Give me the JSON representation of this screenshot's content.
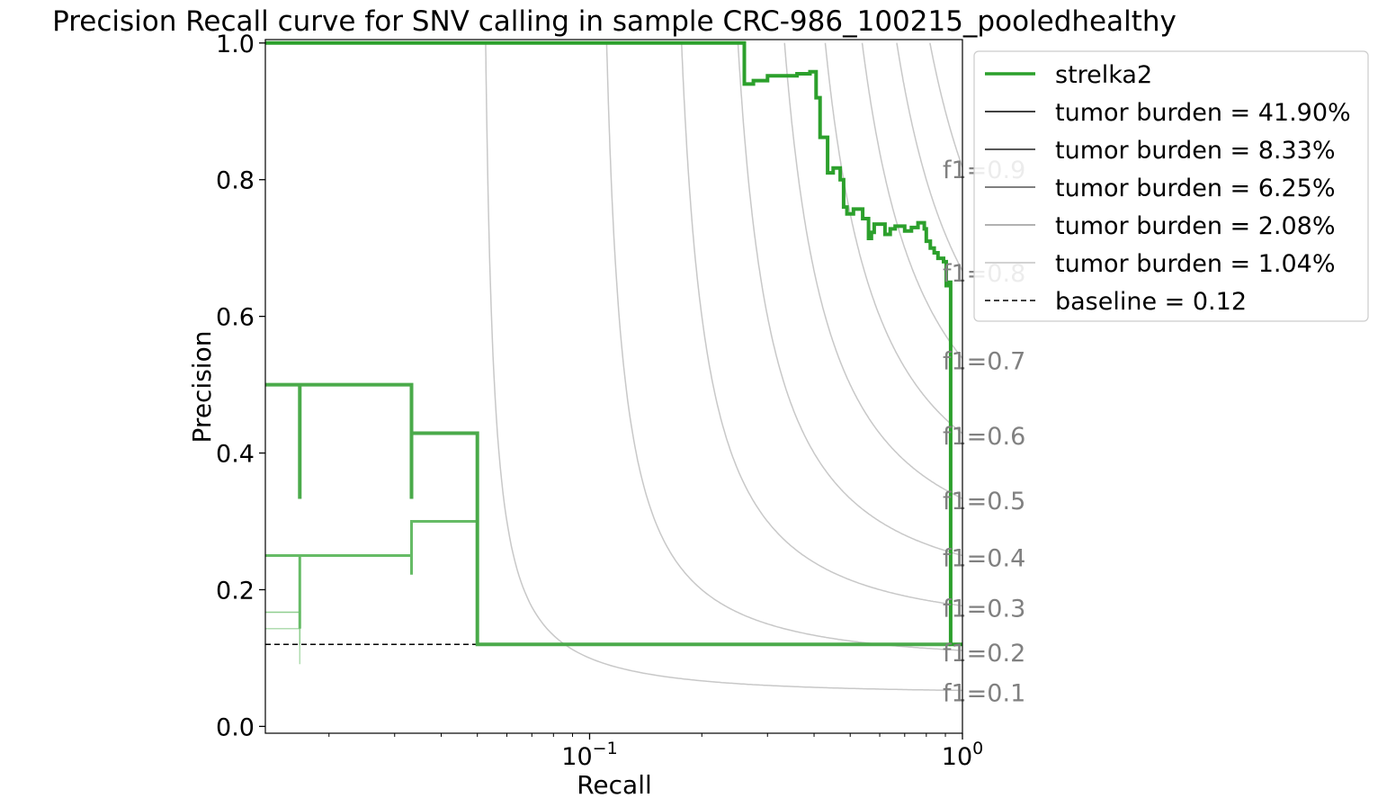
{
  "chart_data": {
    "type": "line",
    "title": "Precision Recall curve for SNV calling in sample CRC-986_100215_pooledhealthy",
    "xlabel": "Recall",
    "ylabel": "Precision",
    "xscale": "log",
    "xlim": [
      0.0135,
      1.0
    ],
    "ylim": [
      -0.01,
      1.005
    ],
    "x_ticks": [
      {
        "value": 0.1,
        "base": "10",
        "exp": "−1"
      },
      {
        "value": 1.0,
        "base": "10",
        "exp": "0"
      }
    ],
    "y_ticks": [
      {
        "value": 0.0,
        "label": "0.0"
      },
      {
        "value": 0.2,
        "label": "0.2"
      },
      {
        "value": 0.4,
        "label": "0.4"
      },
      {
        "value": 0.6,
        "label": "0.6"
      },
      {
        "value": 0.8,
        "label": "0.8"
      },
      {
        "value": 1.0,
        "label": "1.0"
      }
    ],
    "grid": false,
    "legend_position": "outside-upper-right",
    "colors": {
      "strelka2": "#2ca02c",
      "iso_f1": "#c8c8c8",
      "iso_label": "#808080",
      "baseline": "#000000"
    },
    "iso_f1_labels": [
      "f1=0.1",
      "f1=0.2",
      "f1=0.3",
      "f1=0.4",
      "f1=0.5",
      "f1=0.6",
      "f1=0.7",
      "f1=0.8",
      "f1=0.9"
    ],
    "iso_f1_values": [
      0.1,
      0.2,
      0.3,
      0.4,
      0.5,
      0.6,
      0.7,
      0.8,
      0.9
    ],
    "baseline": {
      "name": "baseline = 0.12",
      "value": 0.12
    },
    "legend": [
      {
        "label": "strelka2",
        "color": "#2ca02c",
        "width": 3.5,
        "dash": false
      },
      {
        "label": "tumor burden = 41.90%",
        "color": "#000000",
        "width": 1.5,
        "dash": false
      },
      {
        "label": "tumor burden = 8.33%",
        "color": "#222222",
        "width": 1.5,
        "dash": false
      },
      {
        "label": "tumor burden = 6.25%",
        "color": "#555555",
        "width": 1.5,
        "dash": false
      },
      {
        "label": "tumor burden = 2.08%",
        "color": "#999999",
        "width": 1.5,
        "dash": false
      },
      {
        "label": "tumor burden = 1.04%",
        "color": "#c4c4c4",
        "width": 1.5,
        "dash": false
      },
      {
        "label": "baseline = 0.12",
        "color": "#000000",
        "width": 1.5,
        "dash": true
      }
    ],
    "series": [
      {
        "name": "tumor burden = 41.90%",
        "color": "#2ca02c",
        "width": 4,
        "opacity": 1.0,
        "points": [
          [
            0.0135,
            1.0
          ],
          [
            0.26,
            1.0
          ],
          [
            0.26,
            0.94
          ],
          [
            0.275,
            0.94
          ],
          [
            0.275,
            0.945
          ],
          [
            0.3,
            0.945
          ],
          [
            0.3,
            0.952
          ],
          [
            0.36,
            0.952
          ],
          [
            0.36,
            0.955
          ],
          [
            0.39,
            0.955
          ],
          [
            0.39,
            0.958
          ],
          [
            0.405,
            0.958
          ],
          [
            0.405,
            0.92
          ],
          [
            0.415,
            0.92
          ],
          [
            0.415,
            0.862
          ],
          [
            0.435,
            0.862
          ],
          [
            0.435,
            0.81
          ],
          [
            0.45,
            0.81
          ],
          [
            0.45,
            0.817
          ],
          [
            0.47,
            0.817
          ],
          [
            0.47,
            0.8
          ],
          [
            0.48,
            0.8
          ],
          [
            0.48,
            0.76
          ],
          [
            0.49,
            0.76
          ],
          [
            0.49,
            0.75
          ],
          [
            0.51,
            0.75
          ],
          [
            0.51,
            0.757
          ],
          [
            0.54,
            0.757
          ],
          [
            0.54,
            0.743
          ],
          [
            0.56,
            0.743
          ],
          [
            0.56,
            0.714
          ],
          [
            0.57,
            0.714
          ],
          [
            0.57,
            0.723
          ],
          [
            0.58,
            0.723
          ],
          [
            0.58,
            0.735
          ],
          [
            0.62,
            0.735
          ],
          [
            0.62,
            0.72
          ],
          [
            0.64,
            0.72
          ],
          [
            0.64,
            0.728
          ],
          [
            0.66,
            0.728
          ],
          [
            0.66,
            0.732
          ],
          [
            0.7,
            0.732
          ],
          [
            0.7,
            0.725
          ],
          [
            0.73,
            0.725
          ],
          [
            0.73,
            0.73
          ],
          [
            0.76,
            0.73
          ],
          [
            0.76,
            0.737
          ],
          [
            0.79,
            0.737
          ],
          [
            0.79,
            0.728
          ],
          [
            0.8,
            0.728
          ],
          [
            0.8,
            0.71
          ],
          [
            0.82,
            0.71
          ],
          [
            0.82,
            0.7
          ],
          [
            0.84,
            0.7
          ],
          [
            0.84,
            0.693
          ],
          [
            0.86,
            0.693
          ],
          [
            0.86,
            0.685
          ],
          [
            0.89,
            0.685
          ],
          [
            0.89,
            0.68
          ],
          [
            0.905,
            0.68
          ],
          [
            0.905,
            0.645
          ],
          [
            0.915,
            0.645
          ],
          [
            0.915,
            0.65
          ],
          [
            0.93,
            0.65
          ],
          [
            0.93,
            0.12
          ],
          [
            1.0,
            0.12
          ]
        ]
      },
      {
        "name": "tumor burden = 8.33%",
        "color": "#4aaa4a",
        "width": 4,
        "opacity": 1.0,
        "points": [
          [
            0.0135,
            0.5
          ],
          [
            0.0167,
            0.5
          ],
          [
            0.0167,
            0.333
          ],
          [
            0.0167,
            0.5
          ],
          [
            0.0333,
            0.5
          ],
          [
            0.0333,
            0.333
          ],
          [
            0.0333,
            0.429
          ],
          [
            0.05,
            0.429
          ],
          [
            0.05,
            0.12
          ],
          [
            0.93,
            0.12
          ]
        ]
      },
      {
        "name": "tumor burden = 6.25%",
        "color": "#66bb66",
        "width": 3,
        "opacity": 1.0,
        "points": [
          [
            0.0135,
            0.25
          ],
          [
            0.0167,
            0.25
          ],
          [
            0.0167,
            0.143
          ],
          [
            0.0167,
            0.25
          ],
          [
            0.0333,
            0.25
          ],
          [
            0.0333,
            0.222
          ],
          [
            0.0333,
            0.3
          ],
          [
            0.05,
            0.3
          ],
          [
            0.05,
            0.12
          ]
        ]
      },
      {
        "name": "tumor burden = 2.08%",
        "color": "#8fce8f",
        "width": 1.5,
        "opacity": 1.0,
        "points": [
          [
            0.0135,
            0.167
          ],
          [
            0.0167,
            0.167
          ],
          [
            0.0167,
            0.12
          ]
        ]
      },
      {
        "name": "tumor burden = 1.04%",
        "color": "#b0dcb0",
        "width": 1.5,
        "opacity": 1.0,
        "points": [
          [
            0.0135,
            0.143
          ],
          [
            0.0167,
            0.143
          ],
          [
            0.0167,
            0.091
          ]
        ]
      }
    ]
  }
}
